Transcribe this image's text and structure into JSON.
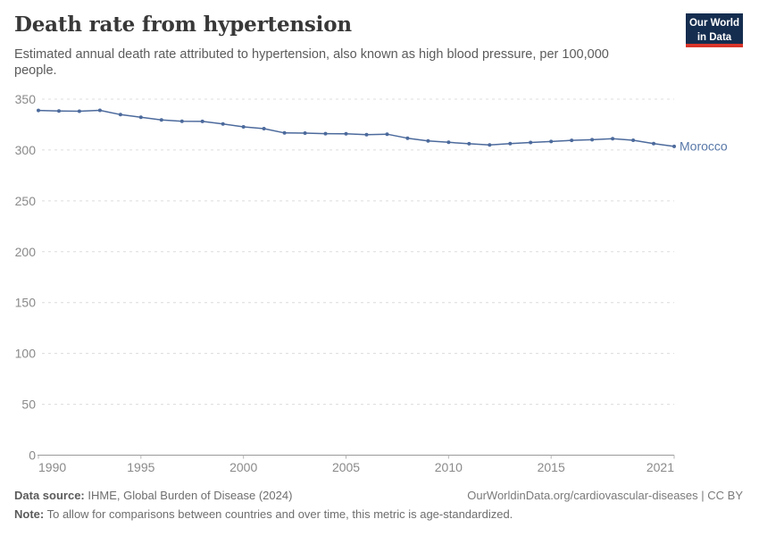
{
  "header": {
    "title": "Death rate from hypertension",
    "subtitle": "Estimated annual death rate attributed to hypertension, also known as high blood pressure, per 100,000 people."
  },
  "logo": {
    "line1": "Our World",
    "line2": "in Data",
    "bg_color": "#152d4f",
    "accent_color": "#d8352a"
  },
  "chart_data": {
    "type": "line",
    "title": "Death rate from hypertension",
    "xlabel": "",
    "ylabel": "",
    "x": [
      1990,
      1991,
      1992,
      1993,
      1994,
      1995,
      1996,
      1997,
      1998,
      1999,
      2000,
      2001,
      2002,
      2003,
      2004,
      2005,
      2006,
      2007,
      2008,
      2009,
      2010,
      2011,
      2012,
      2013,
      2014,
      2015,
      2016,
      2017,
      2018,
      2019,
      2020,
      2021
    ],
    "series": [
      {
        "name": "Morocco",
        "color": "#4c6a9c",
        "label_color": "#5878a8",
        "values": [
          338.9,
          338.4,
          338.1,
          339.0,
          334.8,
          332.2,
          329.5,
          328.3,
          328.1,
          325.6,
          322.8,
          321.0,
          316.8,
          316.6,
          316.1,
          315.9,
          315.0,
          315.6,
          311.6,
          308.9,
          307.6,
          306.2,
          305.0,
          306.3,
          307.4,
          308.4,
          309.5,
          310.1,
          311.2,
          309.6,
          306.3,
          303.5
        ]
      }
    ],
    "ylim": [
      0,
      350
    ],
    "yticks": [
      0,
      50,
      100,
      150,
      200,
      250,
      300,
      350
    ],
    "xticks": [
      1990,
      1995,
      2000,
      2005,
      2010,
      2015,
      2021
    ],
    "grid": "horizontal-dashed",
    "grid_color": "#dcdcdc",
    "axis_color": "#9a9a9a",
    "tick_label_color": "#8a8a8a",
    "legend_position": "end-of-line-label",
    "markers": true
  },
  "footer": {
    "source_label": "Data source:",
    "source_text": " IHME, Global Burden of Disease (2024)",
    "link_text": "OurWorldinData.org/cardiovascular-diseases | CC BY",
    "note_label": "Note:",
    "note_text": " To allow for comparisons between countries and over time, this metric is age-standardized."
  }
}
